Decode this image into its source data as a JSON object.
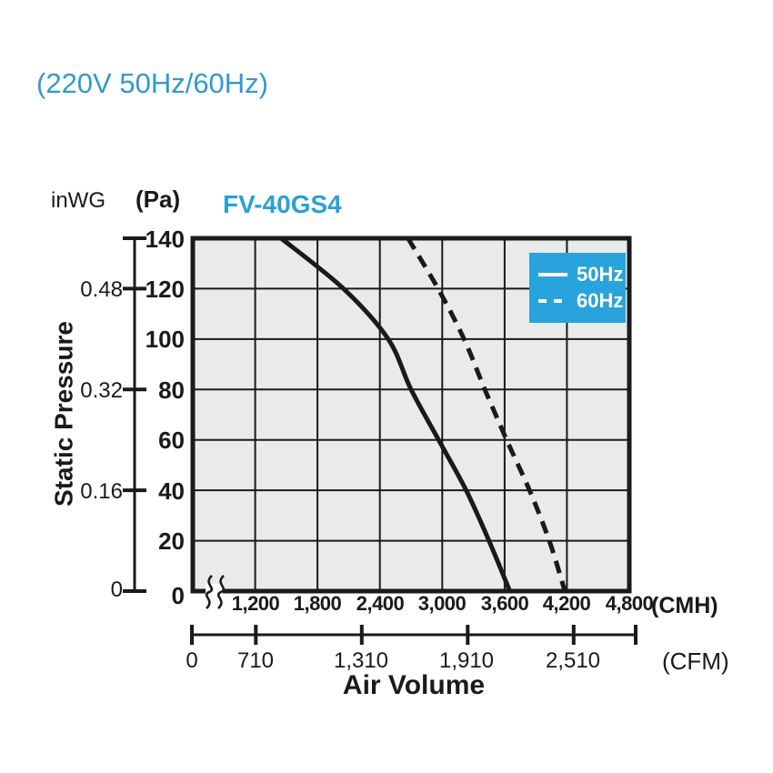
{
  "header": {
    "title": "(220V 50Hz/60Hz)",
    "model": "FV-40GS4"
  },
  "units": {
    "inwg": "inWG",
    "pa": "(Pa)",
    "cmh": "(CMH)",
    "cfm": "(CFM)"
  },
  "legend": {
    "items": [
      {
        "label": "50Hz",
        "style": "solid"
      },
      {
        "label": "60Hz",
        "style": "dashed"
      }
    ]
  },
  "colors": {
    "title_blue": "#3399CC",
    "model_blue": "#29A0D8",
    "legend_bg": "#29A3DB",
    "plot_bg": "#E9EAEA",
    "line_black": "#1A1A1A"
  },
  "chart_data": {
    "type": "line",
    "title": "FV-40GS4",
    "subtitle": "(220V 50Hz/60Hz)",
    "xlabel": "Air Volume",
    "ylabel": "Static Pressure",
    "x_units": [
      "CMH",
      "CFM"
    ],
    "y_units": [
      "Pa",
      "inWG"
    ],
    "xlim_cmh": [
      600,
      4800
    ],
    "x_axis_break_before": 1200,
    "ylim_pa": [
      0,
      140
    ],
    "grid": true,
    "legend_position": "top-right",
    "corner_zero": "0",
    "x_ticks_cmh": [
      "1,200",
      "1,800",
      "2,400",
      "3,000",
      "3,600",
      "4,200",
      "4,800"
    ],
    "x_ticks_cmh_values": [
      1200,
      1800,
      2400,
      3000,
      3600,
      4200,
      4800
    ],
    "x_ticks_cfm": [
      "0",
      "710",
      "1,310",
      "1,910",
      "2,510"
    ],
    "x_ticks_cfm_values": [
      0,
      710,
      1310,
      1910,
      2510
    ],
    "y_ticks_pa": [
      "140",
      "120",
      "100",
      "80",
      "60",
      "40",
      "20"
    ],
    "y_ticks_pa_values": [
      140,
      120,
      100,
      80,
      60,
      40,
      20,
      0
    ],
    "y_ticks_inwg": [
      "0.48",
      "0.32",
      "0.16",
      "0"
    ],
    "y_ticks_inwg_pa_pos": [
      120,
      80,
      40,
      0
    ],
    "inwg_ruler_ticks_pa": [
      140,
      120,
      80,
      40,
      0
    ],
    "series": [
      {
        "name": "50Hz",
        "style": "solid",
        "color": "#1A1A1A",
        "points_cmh_pa": [
          [
            1450,
            140
          ],
          [
            2050,
            120
          ],
          [
            2480,
            100
          ],
          [
            2700,
            80
          ],
          [
            2965,
            60
          ],
          [
            3230,
            40
          ],
          [
            3450,
            20
          ],
          [
            3650,
            0
          ]
        ]
      },
      {
        "name": "60Hz",
        "style": "dashed",
        "color": "#1A1A1A",
        "points_cmh_pa": [
          [
            2670,
            140
          ],
          [
            2960,
            120
          ],
          [
            3210,
            100
          ],
          [
            3410,
            80
          ],
          [
            3620,
            60
          ],
          [
            3840,
            40
          ],
          [
            4030,
            20
          ],
          [
            4180,
            0
          ]
        ]
      }
    ]
  }
}
